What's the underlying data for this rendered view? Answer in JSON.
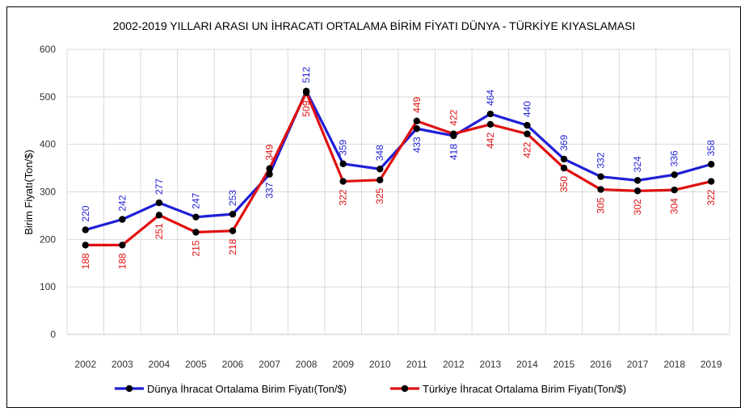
{
  "chart_data": {
    "type": "line",
    "title": "2002-2019 YILLARI ARASI UN İHRACATI ORTALAMA BİRİM FİYATI DÜNYA - TÜRKİYE KIYASLAMASI",
    "xlabel": "",
    "ylabel": "Birim Fiyatı(Ton/$)",
    "ylim": [
      0,
      600
    ],
    "yticks": [
      0,
      100,
      200,
      300,
      400,
      500,
      600
    ],
    "grid": true,
    "legend_position": "bottom",
    "categories": [
      "2002",
      "2003",
      "2004",
      "2005",
      "2006",
      "2007",
      "2008",
      "2009",
      "2010",
      "2011",
      "2012",
      "2013",
      "2014",
      "2015",
      "2016",
      "2017",
      "2018",
      "2019"
    ],
    "series": [
      {
        "name": "Dünya İhracat Ortalama Birim Fiyatı(Ton/$)",
        "color": "#1f1fd6",
        "values": [
          220,
          242,
          277,
          247,
          253,
          337,
          512,
          359,
          348,
          433,
          418,
          464,
          440,
          369,
          332,
          324,
          336,
          358
        ],
        "label_pos": [
          "above",
          "above",
          "above",
          "above",
          "above",
          "below",
          "above",
          "above",
          "above",
          "below",
          "below",
          "above",
          "above",
          "above",
          "above",
          "above",
          "above",
          "above"
        ]
      },
      {
        "name": "Türkiye İhracat Ortalama Birim Fiyatı(Ton/$)",
        "color": "#e01010",
        "values": [
          188,
          188,
          251,
          215,
          218,
          349,
          509,
          322,
          325,
          449,
          422,
          442,
          422,
          350,
          305,
          302,
          304,
          322
        ],
        "label_pos": [
          "below",
          "below",
          "below",
          "below",
          "below",
          "above",
          "below",
          "below",
          "below",
          "above",
          "above",
          "below",
          "below",
          "below",
          "below",
          "below",
          "below",
          "below"
        ]
      }
    ]
  }
}
